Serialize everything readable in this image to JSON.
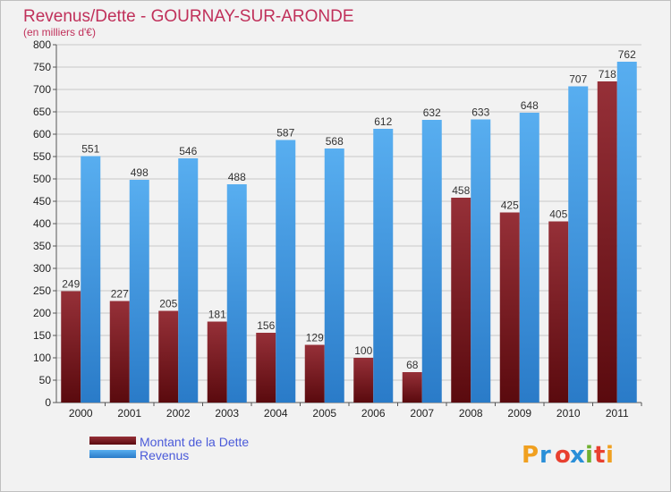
{
  "chart_data": {
    "type": "bar",
    "title": "Revenus/Dette - GOURNAY-SUR-ARONDE",
    "subtitle": "(en milliers d'€)",
    "categories": [
      "2000",
      "2001",
      "2002",
      "2003",
      "2004",
      "2005",
      "2006",
      "2007",
      "2008",
      "2009",
      "2010",
      "2011"
    ],
    "series": [
      {
        "name": "Montant de la Dette",
        "values": [
          249,
          227,
          205,
          181,
          156,
          129,
          100,
          68,
          458,
          425,
          405,
          718
        ],
        "color": "#7a1f24"
      },
      {
        "name": "Revenus",
        "values": [
          551,
          498,
          546,
          488,
          587,
          568,
          612,
          632,
          633,
          648,
          707,
          762
        ],
        "color": "#4a9fe0"
      }
    ],
    "ylim": [
      0,
      800
    ],
    "yticks": [
      0,
      50,
      100,
      150,
      200,
      250,
      300,
      350,
      400,
      450,
      500,
      550,
      600,
      650,
      700,
      750,
      800
    ],
    "grid": true,
    "legend_position": "bottom-left"
  },
  "logo": {
    "text": "Proxiti",
    "colors": [
      "#f0a020",
      "#2a8fd8",
      "#e84030",
      "#2a8fd8",
      "#70b030",
      "#e84030",
      "#f0a020"
    ]
  }
}
